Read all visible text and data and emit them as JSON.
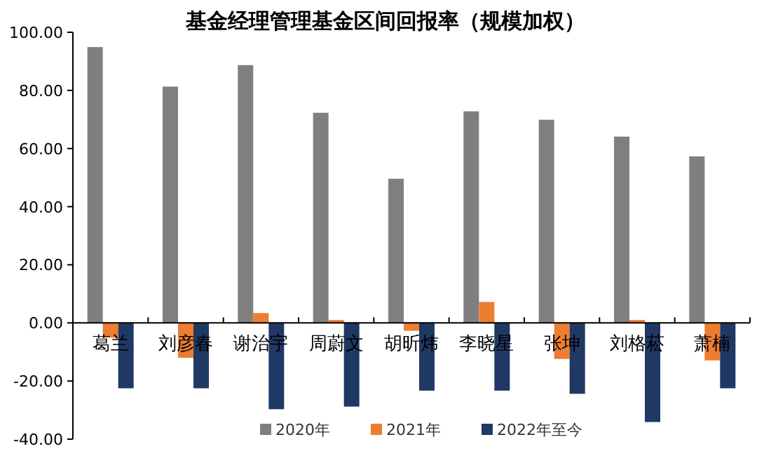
{
  "chart_data": {
    "type": "bar",
    "title": "基金经理管理基金区间回报率（规模加权）",
    "categories": [
      "葛兰",
      "刘彦春",
      "谢治宇",
      "周蔚文",
      "胡昕炜",
      "李晓星",
      "张坤",
      "刘格菘",
      "萧楠"
    ],
    "series": [
      {
        "name": "2020年",
        "color": "#7f7f7f",
        "values": [
          94.9,
          81.3,
          88.7,
          72.3,
          49.6,
          72.8,
          69.9,
          64.1,
          57.3
        ]
      },
      {
        "name": "2021年",
        "color": "#ed7d31",
        "values": [
          -5.1,
          -12.0,
          3.4,
          1.0,
          -2.7,
          7.2,
          -12.4,
          1.0,
          -12.9
        ]
      },
      {
        "name": "2022年至今",
        "color": "#203864",
        "values": [
          -22.5,
          -22.5,
          -29.7,
          -28.8,
          -23.3,
          -23.3,
          -24.4,
          -34.1,
          -22.5
        ]
      }
    ],
    "ylim": [
      -40,
      100
    ],
    "yticks": [
      {
        "value": -40,
        "label": "-40.00"
      },
      {
        "value": -20,
        "label": "-20.00"
      },
      {
        "value": 0,
        "label": "0.00"
      },
      {
        "value": 20,
        "label": "20.00"
      },
      {
        "value": 40,
        "label": "40.00"
      },
      {
        "value": 60,
        "label": "60.00"
      },
      {
        "value": 80,
        "label": "80.00"
      },
      {
        "value": 100,
        "label": "100.00"
      }
    ],
    "legend": "bottom"
  }
}
